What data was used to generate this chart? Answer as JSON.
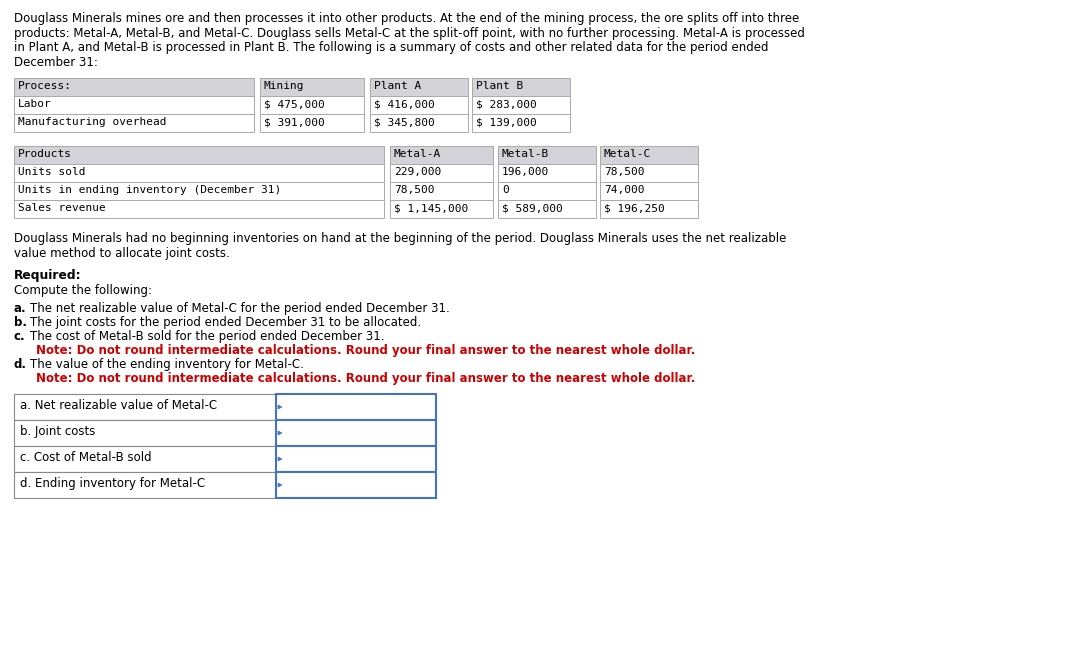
{
  "intro_text": "Douglass Minerals mines ore and then processes it into other products. At the end of the mining process, the ore splits off into three\nproducts: Metal-A, Metal-B, and Metal-C. Douglass sells Metal-C at the split-off point, with no further processing. Metal-A is processed\nin Plant A, and Metal-B is processed in Plant B. The following is a summary of costs and other related data for the period ended\nDecember 31:",
  "table1_header": [
    "Process:",
    "Mining",
    "Plant A",
    "Plant B"
  ],
  "table1_rows": [
    [
      "Labor",
      "$ 475,000",
      "$ 416,000",
      "$ 283,000"
    ],
    [
      "Manufacturing overhead",
      "$ 391,000",
      "$ 345,800",
      "$ 139,000"
    ]
  ],
  "table2_header": [
    "Products",
    "Metal-A",
    "Metal-B",
    "Metal-C"
  ],
  "table2_rows": [
    [
      "Units sold",
      "229,000",
      "196,000",
      "78,500"
    ],
    [
      "Units in ending inventory (December 31)",
      "78,500",
      "0",
      "74,000"
    ],
    [
      "Sales revenue",
      "$ 1,145,000",
      "$ 589,000",
      "$ 196,250"
    ]
  ],
  "middle_text": "Douglass Minerals had no beginning inventories on hand at the beginning of the period. Douglass Minerals uses the net realizable\nvalue method to allocate joint costs.",
  "required_header": "Required:",
  "required_subheader": "Compute the following:",
  "questions": [
    {
      "label": "a.",
      "text": "The net realizable value of Metal-C for the period ended December 31."
    },
    {
      "label": "b.",
      "text": "The joint costs for the period ended December 31 to be allocated."
    },
    {
      "label": "c.",
      "text": "The cost of Metal-B sold for the period ended December 31."
    },
    {
      "label": "note_c",
      "text": "Note: Do not round intermediate calculations. Round your final answer to the nearest whole dollar."
    },
    {
      "label": "d.",
      "text": "The value of the ending inventory for Metal-C."
    },
    {
      "label": "note_d",
      "text": "Note: Do not round intermediate calculations. Round your final answer to the nearest whole dollar."
    }
  ],
  "answer_rows": [
    "a. Net realizable value of Metal-C",
    "b. Joint costs",
    "c. Cost of Metal-B sold",
    "d. Ending inventory for Metal-C"
  ],
  "table_header_bg": "#d3d3d9",
  "table_row_bg": "#ffffff",
  "table_border_color": "#aaaaaa",
  "answer_box_border": "#4472c4",
  "normal_text_color": "#000000",
  "note_text_color": "#cc0000",
  "mono_font": "monospace",
  "sans_font": "DejaVu Sans"
}
